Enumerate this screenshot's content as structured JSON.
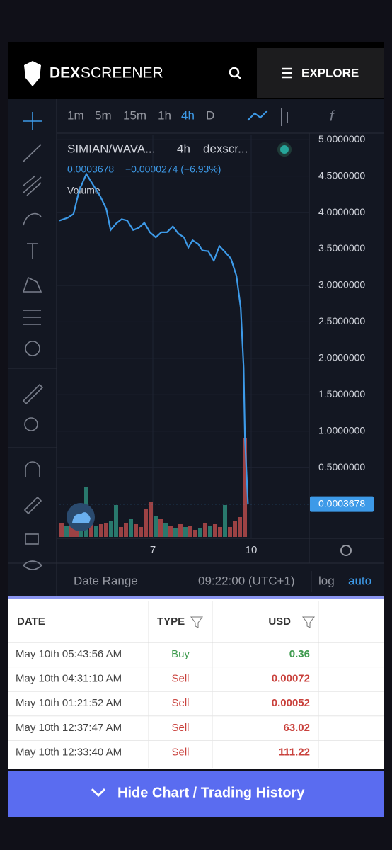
{
  "header": {
    "logo_left": "DEX",
    "logo_right": "SCREENER",
    "explore": "EXPLORE"
  },
  "toolbar": {
    "intervals": [
      "1m",
      "5m",
      "15m",
      "1h",
      "4h",
      "D"
    ]
  },
  "legend": {
    "pair": "SIMIAN/WAVA...",
    "interval": "4h",
    "source": "dexscr...",
    "price": "0.0003678",
    "change": "−0.0000274 (−6.93%)",
    "volume_label": "Volume"
  },
  "chart_data": {
    "type": "line",
    "color": "#3d9ae8",
    "grid": true,
    "x": [
      4.15,
      4.41,
      4.58,
      4.75,
      4.97,
      5.19,
      5.4,
      5.58,
      5.71,
      5.88,
      6.05,
      6.22,
      6.4,
      6.57,
      6.74,
      6.91,
      7.09,
      7.26,
      7.43,
      7.61,
      7.78,
      7.95,
      8.08,
      8.21,
      8.38,
      8.51,
      8.69,
      8.86,
      9.03,
      9.2,
      9.38,
      9.55,
      9.68,
      9.77,
      9.81,
      9.9
    ],
    "values": [
      3.89,
      3.93,
      3.98,
      4.3,
      4.53,
      4.37,
      4.22,
      4.05,
      3.76,
      3.85,
      3.91,
      3.89,
      3.76,
      3.79,
      3.86,
      3.73,
      3.66,
      3.73,
      3.73,
      3.81,
      3.71,
      3.66,
      3.52,
      3.62,
      3.57,
      3.48,
      3.47,
      3.34,
      3.54,
      3.46,
      3.37,
      3.13,
      2.69,
      1.87,
      0.89,
      0.0003678
    ],
    "xlim": [
      4.15,
      11.77
    ],
    "xticks": [
      7,
      10
    ],
    "ylim": [
      -0.47,
      5.07
    ],
    "yticks": [
      {
        "value": 5,
        "label": "5.0000000"
      },
      {
        "value": 4.5,
        "label": "4.5000000"
      },
      {
        "value": 4,
        "label": "4.0000000"
      },
      {
        "value": 3.5,
        "label": "3.5000000"
      },
      {
        "value": 3,
        "label": "3.0000000"
      },
      {
        "value": 2.5,
        "label": "2.5000000"
      },
      {
        "value": 2,
        "label": "2.0000000"
      },
      {
        "value": 1.5,
        "label": "1.5000000"
      },
      {
        "value": 1,
        "label": "1.0000000"
      },
      {
        "value": 0.5,
        "label": "0.5000000"
      }
    ],
    "volume": {
      "values": [
        20,
        15,
        22,
        25,
        30,
        70,
        28,
        15,
        18,
        20,
        22,
        45,
        14,
        20,
        25,
        18,
        14,
        40,
        50,
        30,
        25,
        20,
        16,
        12,
        18,
        14,
        16,
        10,
        12,
        20,
        16,
        18,
        14,
        45,
        14,
        22,
        28,
        140
      ],
      "colors": [
        "#b54a4a",
        "#2e8b7a",
        "#b54a4a",
        "#b54a4a",
        "#2e8b7a",
        "#2e8b7a",
        "#b54a4a",
        "#2e8b7a",
        "#b54a4a",
        "#b54a4a",
        "#2e8b7a",
        "#2e8b7a",
        "#b54a4a",
        "#b54a4a",
        "#2e8b7a",
        "#b54a4a",
        "#b54a4a",
        "#b54a4a",
        "#b54a4a",
        "#2e8b7a",
        "#b54a4a",
        "#2e8b7a",
        "#b54a4a",
        "#2e8b7a",
        "#b54a4a",
        "#2e8b7a",
        "#b54a4a",
        "#b54a4a",
        "#2e8b7a",
        "#b54a4a",
        "#2e8b7a",
        "#b54a4a",
        "#b54a4a",
        "#2e8b7a",
        "#b54a4a",
        "#b54a4a",
        "#b54a4a",
        "#b54a4a"
      ]
    }
  },
  "footer_bar": {
    "date_range": "Date Range",
    "time": "09:22:00 (UTC+1)",
    "log": "log",
    "auto": "auto"
  },
  "table": {
    "headers": [
      "DATE",
      "TYPE",
      "USD"
    ],
    "rows": [
      [
        "May 10th 05:43:56 AM",
        "Buy",
        "0.36"
      ],
      [
        "May 10th 04:31:10 AM",
        "Sell",
        "0.00072"
      ],
      [
        "May 10th 01:21:52 AM",
        "Sell",
        "0.00052"
      ],
      [
        "May 10th 12:37:47 AM",
        "Sell",
        "63.02"
      ],
      [
        "May 10th 12:33:40 AM",
        "Sell",
        "111.22"
      ]
    ]
  },
  "button": "Hide Chart / Trading History"
}
